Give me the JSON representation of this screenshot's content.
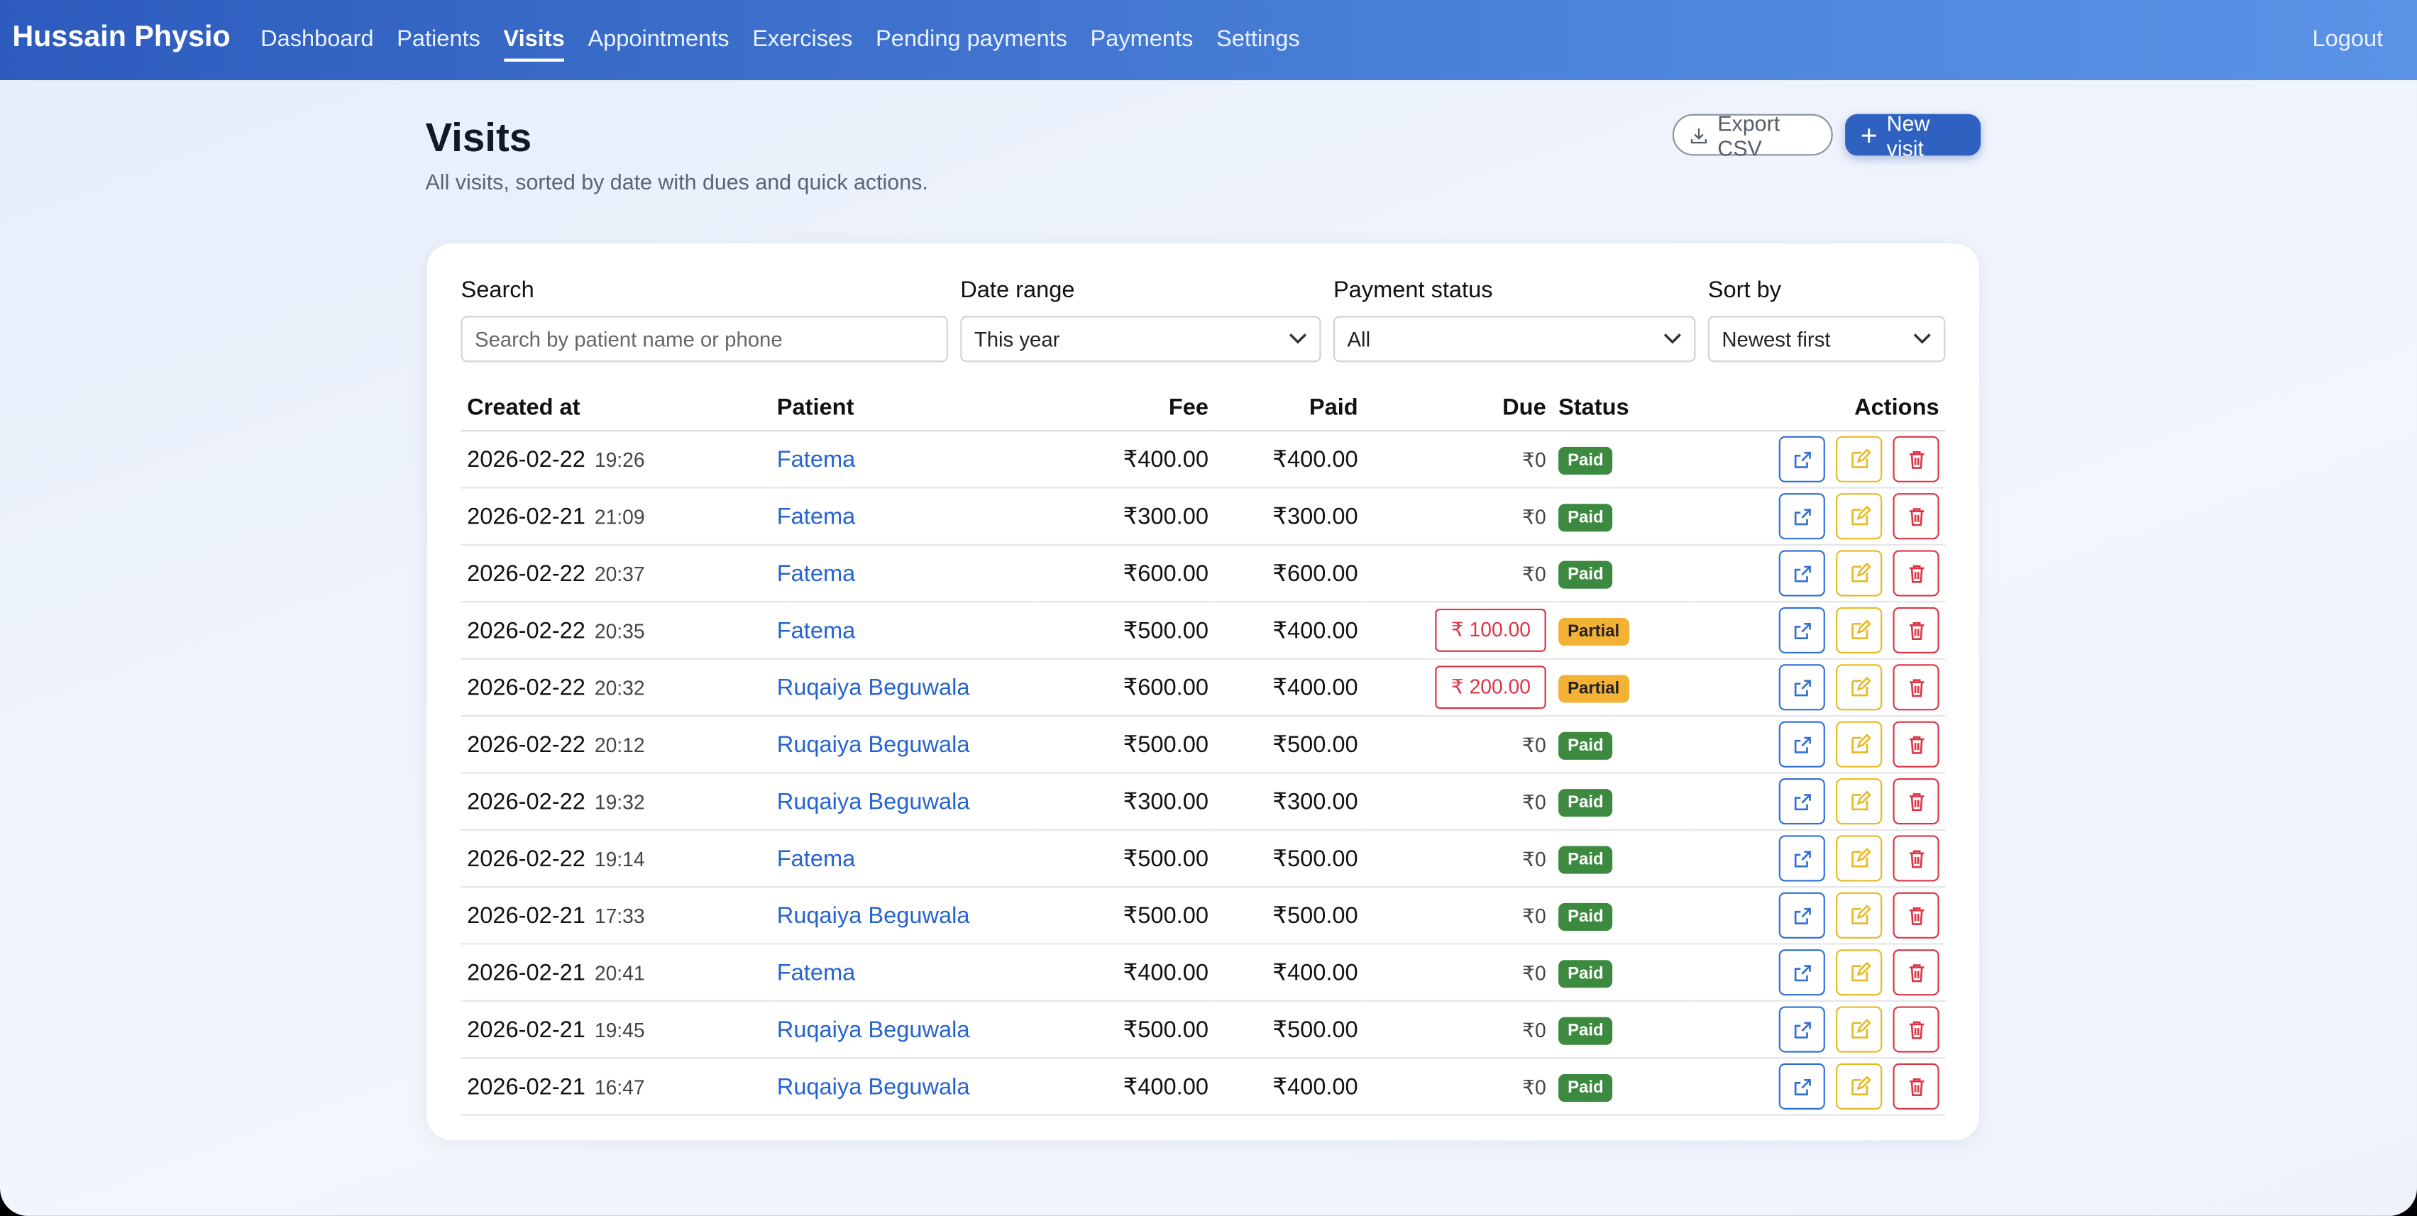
{
  "nav": {
    "brand": "Hussain Physio",
    "links": [
      "Dashboard",
      "Patients",
      "Visits",
      "Appointments",
      "Exercises",
      "Pending payments",
      "Payments",
      "Settings"
    ],
    "active": "Visits",
    "logout": "Logout"
  },
  "header": {
    "title": "Visits",
    "subtitle": "All visits, sorted by date with dues and quick actions.",
    "export_button": "Export CSV",
    "new_button": "New visit"
  },
  "filters": {
    "search_label": "Search",
    "search_placeholder": "Search by patient name or phone",
    "date_label": "Date range",
    "date_value": "This year",
    "payment_label": "Payment status",
    "payment_value": "All",
    "sort_label": "Sort by",
    "sort_value": "Newest first"
  },
  "table": {
    "headers": [
      "Created at",
      "Patient",
      "Fee",
      "Paid",
      "Due",
      "Status",
      "Actions"
    ],
    "rows": [
      {
        "date": "2026-02-22",
        "time": "19:26",
        "patient": "Fatema",
        "fee": "₹400.00",
        "paid": "₹400.00",
        "due": "₹0",
        "status": "Paid"
      },
      {
        "date": "2026-02-21",
        "time": "21:09",
        "patient": "Fatema",
        "fee": "₹300.00",
        "paid": "₹300.00",
        "due": "₹0",
        "status": "Paid"
      },
      {
        "date": "2026-02-22",
        "time": "20:37",
        "patient": "Fatema",
        "fee": "₹600.00",
        "paid": "₹600.00",
        "due": "₹0",
        "status": "Paid"
      },
      {
        "date": "2026-02-22",
        "time": "20:35",
        "patient": "Fatema",
        "fee": "₹500.00",
        "paid": "₹400.00",
        "due": "₹ 100.00",
        "status": "Partial"
      },
      {
        "date": "2026-02-22",
        "time": "20:32",
        "patient": "Ruqaiya Beguwala",
        "fee": "₹600.00",
        "paid": "₹400.00",
        "due": "₹ 200.00",
        "status": "Partial"
      },
      {
        "date": "2026-02-22",
        "time": "20:12",
        "patient": "Ruqaiya Beguwala",
        "fee": "₹500.00",
        "paid": "₹500.00",
        "due": "₹0",
        "status": "Paid"
      },
      {
        "date": "2026-02-22",
        "time": "19:32",
        "patient": "Ruqaiya Beguwala",
        "fee": "₹300.00",
        "paid": "₹300.00",
        "due": "₹0",
        "status": "Paid"
      },
      {
        "date": "2026-02-22",
        "time": "19:14",
        "patient": "Fatema",
        "fee": "₹500.00",
        "paid": "₹500.00",
        "due": "₹0",
        "status": "Paid"
      },
      {
        "date": "2026-02-21",
        "time": "17:33",
        "patient": "Ruqaiya Beguwala",
        "fee": "₹500.00",
        "paid": "₹500.00",
        "due": "₹0",
        "status": "Paid"
      },
      {
        "date": "2026-02-21",
        "time": "20:41",
        "patient": "Fatema",
        "fee": "₹400.00",
        "paid": "₹400.00",
        "due": "₹0",
        "status": "Paid"
      },
      {
        "date": "2026-02-21",
        "time": "19:45",
        "patient": "Ruqaiya Beguwala",
        "fee": "₹500.00",
        "paid": "₹500.00",
        "due": "₹0",
        "status": "Paid"
      },
      {
        "date": "2026-02-21",
        "time": "16:47",
        "patient": "Ruqaiya Beguwala",
        "fee": "₹400.00",
        "paid": "₹400.00",
        "due": "₹0",
        "status": "Paid"
      }
    ]
  }
}
